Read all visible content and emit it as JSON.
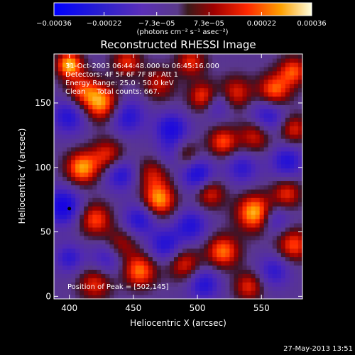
{
  "chart_data": {
    "type": "heatmap",
    "title": "Reconstructed RHESSI Image",
    "xlabel": "Heliocentric X (arcsec)",
    "ylabel": "Heliocentric Y (arcsec)",
    "xlim": [
      388,
      582
    ],
    "ylim": [
      -2,
      188
    ],
    "x_ticks": [
      {
        "value": 400,
        "label": "400"
      },
      {
        "value": 450,
        "label": "450"
      },
      {
        "value": 500,
        "label": "500"
      },
      {
        "value": 550,
        "label": "550"
      }
    ],
    "y_ticks": [
      {
        "value": 0,
        "label": "0"
      },
      {
        "value": 50,
        "label": "50"
      },
      {
        "value": 100,
        "label": "100"
      },
      {
        "value": 150,
        "label": "150"
      }
    ],
    "colorbar": {
      "min": -0.00036,
      "max": 0.00036,
      "units_label": "(photons cm⁻² s⁻¹ asec⁻²)",
      "ticks": [
        {
          "value": -0.00036,
          "label": "−0.00036"
        },
        {
          "value": -0.00022,
          "label": "−0.00022"
        },
        {
          "value": -7.3e-05,
          "label": "−7.3e−05"
        },
        {
          "value": 7.3e-05,
          "label": "7.3e−05"
        },
        {
          "value": 0.00022,
          "label": "0.00022"
        },
        {
          "value": 0.00036,
          "label": "0.00036"
        }
      ]
    },
    "annotations": [
      "31-Oct-2003 06:44:48.000 to 06:45:16.000",
      "Detectors: 4F 5F 6F 7F 8F, Att 1",
      "Energy Range: 25.0 - 50.0 keV",
      "Clean     Total counts: 667."
    ],
    "peak_label": "Position of Peak = [502,145]",
    "peak_position": [
      502,
      145
    ],
    "marker_position": [
      400,
      68
    ],
    "image_blobs": [
      {
        "x": 400,
        "y": 180,
        "v": 1.0,
        "s": 7
      },
      {
        "x": 410,
        "y": 160,
        "v": 0.6,
        "s": 9
      },
      {
        "x": 425,
        "y": 150,
        "v": 0.9,
        "s": 10
      },
      {
        "x": 445,
        "y": 182,
        "v": 0.6,
        "s": 8
      },
      {
        "x": 470,
        "y": 165,
        "v": 0.5,
        "s": 9
      },
      {
        "x": 505,
        "y": 155,
        "v": 0.75,
        "s": 8
      },
      {
        "x": 530,
        "y": 158,
        "v": 0.6,
        "s": 9
      },
      {
        "x": 560,
        "y": 160,
        "v": 0.8,
        "s": 9
      },
      {
        "x": 575,
        "y": 175,
        "v": 0.7,
        "s": 8
      },
      {
        "x": 495,
        "y": 182,
        "v": 0.6,
        "s": 8
      },
      {
        "x": 520,
        "y": 120,
        "v": 0.7,
        "s": 8
      },
      {
        "x": 545,
        "y": 125,
        "v": 0.6,
        "s": 9
      },
      {
        "x": 575,
        "y": 130,
        "v": 0.6,
        "s": 8
      },
      {
        "x": 410,
        "y": 100,
        "v": 0.9,
        "s": 9
      },
      {
        "x": 430,
        "y": 110,
        "v": 0.6,
        "s": 9
      },
      {
        "x": 465,
        "y": 95,
        "v": 0.5,
        "s": 9
      },
      {
        "x": 490,
        "y": 110,
        "v": 0.5,
        "s": 8
      },
      {
        "x": 420,
        "y": 60,
        "v": 0.7,
        "s": 9
      },
      {
        "x": 440,
        "y": 40,
        "v": 0.5,
        "s": 9
      },
      {
        "x": 470,
        "y": 75,
        "v": 0.9,
        "s": 9
      },
      {
        "x": 510,
        "y": 80,
        "v": 0.6,
        "s": 8
      },
      {
        "x": 545,
        "y": 65,
        "v": 1.0,
        "s": 10
      },
      {
        "x": 570,
        "y": 80,
        "v": 0.6,
        "s": 8
      },
      {
        "x": 575,
        "y": 40,
        "v": 0.7,
        "s": 9
      },
      {
        "x": 520,
        "y": 35,
        "v": 0.8,
        "s": 9
      },
      {
        "x": 490,
        "y": 25,
        "v": 0.6,
        "s": 9
      },
      {
        "x": 455,
        "y": 20,
        "v": 0.8,
        "s": 9
      },
      {
        "x": 420,
        "y": 10,
        "v": 0.6,
        "s": 9
      },
      {
        "x": 540,
        "y": 8,
        "v": 0.6,
        "s": 8
      },
      {
        "x": 400,
        "y": 140,
        "v": -0.6,
        "s": 10
      },
      {
        "x": 445,
        "y": 140,
        "v": -0.6,
        "s": 10
      },
      {
        "x": 480,
        "y": 130,
        "v": -0.7,
        "s": 9
      },
      {
        "x": 515,
        "y": 150,
        "v": -0.5,
        "s": 8
      },
      {
        "x": 555,
        "y": 140,
        "v": -0.6,
        "s": 10
      },
      {
        "x": 395,
        "y": 70,
        "v": -0.8,
        "s": 10
      },
      {
        "x": 440,
        "y": 95,
        "v": -0.6,
        "s": 9
      },
      {
        "x": 480,
        "y": 110,
        "v": -0.4,
        "s": 8
      },
      {
        "x": 500,
        "y": 95,
        "v": -0.7,
        "s": 9
      },
      {
        "x": 535,
        "y": 100,
        "v": -0.5,
        "s": 9
      },
      {
        "x": 570,
        "y": 105,
        "v": -0.6,
        "s": 9
      },
      {
        "x": 455,
        "y": 60,
        "v": -0.6,
        "s": 9
      },
      {
        "x": 495,
        "y": 55,
        "v": -0.6,
        "s": 9
      },
      {
        "x": 430,
        "y": 30,
        "v": -0.5,
        "s": 9
      },
      {
        "x": 475,
        "y": 40,
        "v": -0.6,
        "s": 9
      },
      {
        "x": 560,
        "y": 60,
        "v": -0.5,
        "s": 8
      },
      {
        "x": 505,
        "y": 10,
        "v": -0.6,
        "s": 9
      },
      {
        "x": 560,
        "y": 20,
        "v": -0.5,
        "s": 9
      },
      {
        "x": 400,
        "y": 30,
        "v": -0.5,
        "s": 8
      }
    ]
  },
  "footer": {
    "date": "27-May-2013 13:51"
  },
  "colors": {
    "background": "#000000",
    "foreground": "#ffffff",
    "marker": "#000000"
  }
}
